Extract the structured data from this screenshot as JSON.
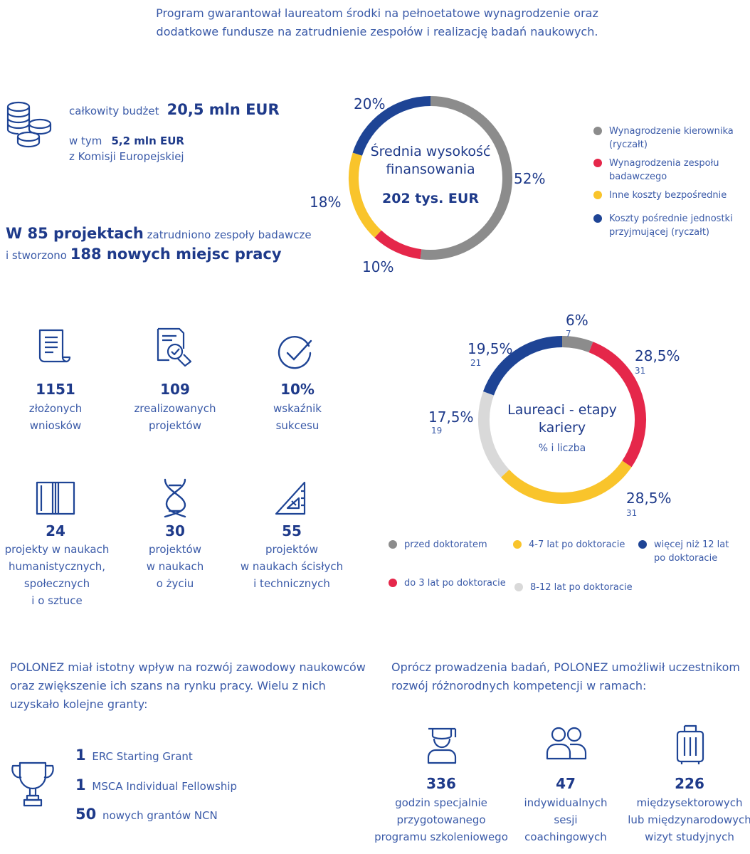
{
  "intro": "Program gwarantował laureatom środki na pełnoetatowe wynagrodzenie oraz dodatkowe fundusze na zatrudnienie zespołów i realizację badań naukowych.",
  "budget": {
    "total_prefix": "całkowity budżet",
    "total_value": "20,5 mln EUR",
    "ec_prefix": "w tym",
    "ec_value": "5,2 mln EUR",
    "ec_suffix": "z Komisji Europejskiej",
    "icon": "coins-icon"
  },
  "projects": {
    "line1_bold": "W 85 projektach",
    "line1_rest": "zatrudniono zespoły badawcze",
    "line2_prefix": "i stworzono",
    "line2_bold": "188 nowych miejsc pracy"
  },
  "funding_donut": {
    "center_title": "Średnia wysokość finansowania",
    "center_value": "202 tys. EUR",
    "labels": [
      "52%",
      "10%",
      "18%",
      "20%"
    ],
    "legend": [
      {
        "label": "Wynagrodzenie kierownika (ryczałt)",
        "color": "#8c8c8c"
      },
      {
        "label": "Wynagrodzenia zespołu badawczego",
        "color": "#e5274a"
      },
      {
        "label": "Inne koszty bezpośrednie",
        "color": "#f9c42b"
      },
      {
        "label": "Koszty pośrednie jednostki przyjmującej (ryczałt)",
        "color": "#1e4495"
      }
    ]
  },
  "chart_data": [
    {
      "type": "pie",
      "title": "Średnia wysokość finansowania",
      "subtitle": "202 tys. EUR",
      "categories": [
        "Wynagrodzenie kierownika (ryczałt)",
        "Wynagrodzenia zespołu badawczego",
        "Inne koszty bezpośrednie",
        "Koszty pośrednie jednostki przyjmującej (ryczałt)"
      ],
      "values": [
        52,
        10,
        18,
        20
      ],
      "colors": [
        "#8c8c8c",
        "#e5274a",
        "#f9c42b",
        "#1e4495"
      ]
    },
    {
      "type": "pie",
      "title": "Laureaci - etapy kariery",
      "subtitle": "% i liczba",
      "categories": [
        "przed doktoratem",
        "do 3 lat po doktoracie",
        "4-7 lat po doktoracie",
        "8-12 lat po doktoracie",
        "więcej niż 12 lat po doktoracie"
      ],
      "values": [
        6,
        28.5,
        28.5,
        17.5,
        19.5
      ],
      "counts": [
        7,
        31,
        31,
        19,
        21
      ],
      "colors": [
        "#8c8c8c",
        "#e5274a",
        "#f9c42b",
        "#d9d9d9",
        "#1e4495"
      ]
    }
  ],
  "career_donut": {
    "center_title": "Laureaci - etapy kariery",
    "center_sub": "% i liczba",
    "labels": [
      {
        "pct": "6%",
        "count": "7"
      },
      {
        "pct": "28,5%",
        "count": "31"
      },
      {
        "pct": "28,5%",
        "count": "31"
      },
      {
        "pct": "17,5%",
        "count": "19"
      },
      {
        "pct": "19,5%",
        "count": "21"
      }
    ],
    "legend": [
      {
        "label": "przed doktoratem",
        "color": "#8c8c8c"
      },
      {
        "label": "4-7 lat po doktoracie",
        "color": "#f9c42b"
      },
      {
        "label": "więcej niż 12 lat po doktoracie",
        "color": "#1e4495"
      },
      {
        "label": "do 3 lat po doktoracie",
        "color": "#e5274a"
      },
      {
        "label": "8-12 lat po doktoracie",
        "color": "#d9d9d9"
      }
    ]
  },
  "stats": [
    {
      "num": "1151",
      "text": "złożonych\nwniosków",
      "icon": "document-icon"
    },
    {
      "num": "109",
      "text": "zrealizowanych\nprojektów",
      "icon": "document-check-icon"
    },
    {
      "num": "10%",
      "text": "wskaźnik\nsukcesu",
      "icon": "checkmark-circle-icon"
    },
    {
      "num": "24",
      "text": "projekty w naukach\nhumanistycznych,\nspołecznych\ni o sztuce",
      "icon": "book-icon"
    },
    {
      "num": "30",
      "text": "projektów\nw naukach\no życiu",
      "icon": "dna-icon"
    },
    {
      "num": "55",
      "text": "projektów\nw naukach ścisłych\ni technicznych",
      "icon": "set-square-icon"
    }
  ],
  "impact": {
    "para": "POLONEZ miał istotny wpływ na rozwój zawodowy naukowców oraz zwiększenie ich szans na rynku pracy. Wielu z nich uzyskało kolejne granty:",
    "icon": "trophy-icon",
    "grants": [
      {
        "num": "1",
        "label": "ERC Starting Grant"
      },
      {
        "num": "1",
        "label": "MSCA Individual Fellowship"
      },
      {
        "num": "50",
        "label": "nowych grantów NCN"
      }
    ]
  },
  "skills": {
    "para": "Oprócz prowadzenia badań, POLONEZ umożliwił uczestnikom rozwój różnorodnych kompetencji w ramach:",
    "items": [
      {
        "num": "336",
        "text": "godzin specjalnie\nprzygotowanego\nprogramu szkoleniowego",
        "icon": "graduate-icon"
      },
      {
        "num": "47",
        "text": "indywidualnych\nsesji\ncoachingowych",
        "icon": "people-icon"
      },
      {
        "num": "226",
        "text": "międzysektorowych\nlub międzynarodowych\nwizyt studyjnych",
        "icon": "suitcase-icon"
      }
    ]
  }
}
